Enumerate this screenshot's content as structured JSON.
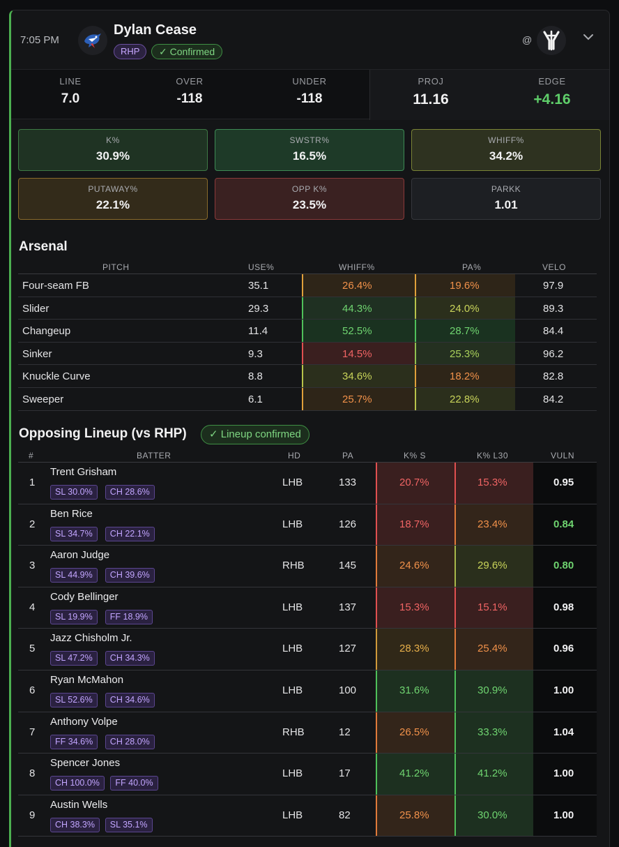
{
  "header": {
    "time": "7:05 PM",
    "pitcher": "Dylan Cease",
    "hand_badge": "RHP",
    "status_badge": "✓ Confirmed",
    "at": "@",
    "team_logo_icon": "blue-jays-logo-icon",
    "opponent_logo_icon": "yankees-logo-icon",
    "expand_icon": "chevron-down-icon"
  },
  "line": {
    "line_label": "LINE",
    "line_value": "7.0",
    "over_label": "OVER",
    "over_value": "-118",
    "under_label": "UNDER",
    "under_value": "-118",
    "proj_label": "PROJ",
    "proj_value": "11.16",
    "edge_label": "EDGE",
    "edge_value": "+4.16"
  },
  "stats": [
    {
      "label": "K%",
      "value": "30.9%"
    },
    {
      "label": "SWSTR%",
      "value": "16.5%"
    },
    {
      "label": "WHIFF%",
      "value": "34.2%"
    },
    {
      "label": "PUTAWAY%",
      "value": "22.1%"
    },
    {
      "label": "OPP K%",
      "value": "23.5%"
    },
    {
      "label": "PARKK",
      "value": "1.01"
    }
  ],
  "arsenal": {
    "title": "Arsenal",
    "headers": {
      "pitch": "PITCH",
      "use": "USE%",
      "whiff": "WHIFF%",
      "pa": "PA%",
      "velo": "VELO"
    },
    "rows": [
      {
        "pitch": "Four-seam FB",
        "use": "35.1",
        "whiff": "26.4%",
        "pa": "19.6%",
        "velo": "97.9"
      },
      {
        "pitch": "Slider",
        "use": "29.3",
        "whiff": "44.3%",
        "pa": "24.0%",
        "velo": "89.3"
      },
      {
        "pitch": "Changeup",
        "use": "11.4",
        "whiff": "52.5%",
        "pa": "28.7%",
        "velo": "84.4"
      },
      {
        "pitch": "Sinker",
        "use": "9.3",
        "whiff": "14.5%",
        "pa": "25.3%",
        "velo": "96.2"
      },
      {
        "pitch": "Knuckle Curve",
        "use": "8.8",
        "whiff": "34.6%",
        "pa": "18.2%",
        "velo": "82.8"
      },
      {
        "pitch": "Sweeper",
        "use": "6.1",
        "whiff": "25.7%",
        "pa": "22.8%",
        "velo": "84.2"
      }
    ]
  },
  "lineup": {
    "title": "Opposing Lineup (vs RHP)",
    "badge": "✓ Lineup confirmed",
    "headers": {
      "num": "#",
      "batter": "BATTER",
      "hd": "HD",
      "pa": "PA",
      "ks": "K% S",
      "kl30": "K% L30",
      "vuln": "VULN"
    },
    "rows": [
      {
        "num": "1",
        "name": "Trent Grisham",
        "chip1": "SL 30.0%",
        "chip2": "CH 28.6%",
        "hd": "LHB",
        "pa": "133",
        "ks": "20.7%",
        "kl30": "15.3%",
        "vuln": "0.95"
      },
      {
        "num": "2",
        "name": "Ben Rice",
        "chip1": "SL 34.7%",
        "chip2": "CH 22.1%",
        "hd": "LHB",
        "pa": "126",
        "ks": "18.7%",
        "kl30": "23.4%",
        "vuln": "0.84"
      },
      {
        "num": "3",
        "name": "Aaron Judge",
        "chip1": "SL 44.9%",
        "chip2": "CH 39.6%",
        "hd": "RHB",
        "pa": "145",
        "ks": "24.6%",
        "kl30": "29.6%",
        "vuln": "0.80"
      },
      {
        "num": "4",
        "name": "Cody Bellinger",
        "chip1": "SL 19.9%",
        "chip2": "FF 18.9%",
        "hd": "LHB",
        "pa": "137",
        "ks": "15.3%",
        "kl30": "15.1%",
        "vuln": "0.98"
      },
      {
        "num": "5",
        "name": "Jazz Chisholm Jr.",
        "chip1": "SL 47.2%",
        "chip2": "CH 34.3%",
        "hd": "LHB",
        "pa": "127",
        "ks": "28.3%",
        "kl30": "25.4%",
        "vuln": "0.96"
      },
      {
        "num": "6",
        "name": "Ryan McMahon",
        "chip1": "SL 52.6%",
        "chip2": "CH 34.6%",
        "hd": "LHB",
        "pa": "100",
        "ks": "31.6%",
        "kl30": "30.9%",
        "vuln": "1.00"
      },
      {
        "num": "7",
        "name": "Anthony Volpe",
        "chip1": "FF 34.6%",
        "chip2": "CH 28.0%",
        "hd": "RHB",
        "pa": "12",
        "ks": "26.5%",
        "kl30": "33.3%",
        "vuln": "1.04"
      },
      {
        "num": "8",
        "name": "Spencer Jones",
        "chip1": "CH 100.0%",
        "chip2": "FF 40.0%",
        "hd": "LHB",
        "pa": "17",
        "ks": "41.2%",
        "kl30": "41.2%",
        "vuln": "1.00"
      },
      {
        "num": "9",
        "name": "Austin Wells",
        "chip1": "CH 38.3%",
        "chip2": "SL 35.1%",
        "hd": "LHB",
        "pa": "82",
        "ks": "25.8%",
        "kl30": "30.0%",
        "vuln": "1.00"
      }
    ]
  },
  "colors": {
    "red_text": "#f06464",
    "orange_text": "#f0914a",
    "amber_text": "#e8b04a",
    "yellowgreen_text": "#c9d45a",
    "green_text": "#6fd470",
    "accent_green": "#4caf50"
  }
}
